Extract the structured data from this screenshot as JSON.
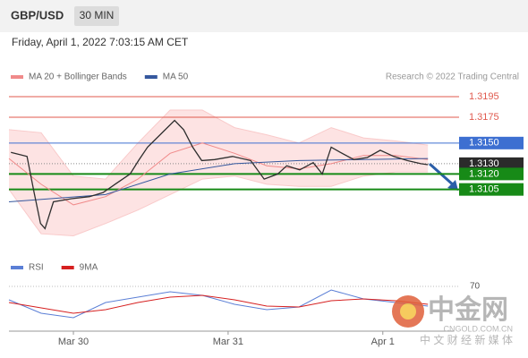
{
  "chart_data": {
    "type": "line",
    "title": "GBP/USD",
    "timeframe": "30 MIN",
    "subtitle": "Friday, April 1, 2022 7:03:15 AM CET",
    "source": "Research © 2022 Trading Central",
    "xlim": [
      -10,
      59
    ],
    "xticks": [
      {
        "value": 0,
        "label": "Mar 30"
      },
      {
        "value": 24,
        "label": "Mar 31"
      },
      {
        "value": 48,
        "label": "Apr 1"
      }
    ],
    "ylim": [
      1.305,
      1.3228
    ],
    "series": [
      {
        "name": "MA 20 + Bollinger Bands",
        "color": "#f08a8a",
        "x": [
          -10,
          -5,
          0,
          5,
          10,
          15,
          20,
          25,
          30,
          35,
          40,
          45,
          50,
          55
        ],
        "values": [
          1.3135,
          1.311,
          1.309,
          1.3098,
          1.3115,
          1.314,
          1.315,
          1.314,
          1.3128,
          1.3125,
          1.313,
          1.3138,
          1.3138,
          1.3134
        ],
        "upper": [
          1.3163,
          1.316,
          1.3118,
          1.3115,
          1.315,
          1.3182,
          1.3182,
          1.3165,
          1.3158,
          1.315,
          1.3165,
          1.3155,
          1.3152,
          1.3148
        ],
        "lower": [
          1.3105,
          1.3062,
          1.306,
          1.3072,
          1.3085,
          1.31,
          1.3115,
          1.3118,
          1.311,
          1.3108,
          1.3108,
          1.3118,
          1.3122,
          1.3122
        ]
      },
      {
        "name": "MA 50",
        "color": "#35589e",
        "x": [
          -10,
          5,
          15,
          25,
          35,
          45,
          55
        ],
        "values": [
          1.3093,
          1.31,
          1.312,
          1.313,
          1.3133,
          1.3134,
          1.3135
        ]
      },
      {
        "color": "#2e2e2e",
        "x": [
          -9.7,
          -7.2,
          -6.1,
          -5.1,
          -4.4,
          -3.1,
          -0.3,
          2.5,
          4.6,
          6.7,
          8.8,
          10.1,
          11.5,
          13.6,
          15.7,
          17.1,
          18.5,
          19.9,
          21.9,
          24.7,
          27.5,
          29.6,
          31.7,
          33.1,
          35.1,
          37.2,
          38.6,
          40.0,
          41.4,
          43.5,
          45.6,
          47.6,
          49.7,
          51.8,
          53.9,
          55.0
        ],
        "values": [
          1.3141,
          1.3137,
          1.3102,
          1.3072,
          1.3067,
          1.3093,
          1.3096,
          1.3098,
          1.3102,
          1.3111,
          1.312,
          1.3133,
          1.3146,
          1.3159,
          1.3172,
          1.3163,
          1.3146,
          1.3133,
          1.3134,
          1.3137,
          1.3133,
          1.3115,
          1.312,
          1.3128,
          1.3124,
          1.3131,
          1.312,
          1.3146,
          1.3141,
          1.3134,
          1.3136,
          1.3143,
          1.3137,
          1.3133,
          1.313,
          1.3129
        ]
      }
    ],
    "levels": [
      {
        "value": 1.3195,
        "label": "1.3195",
        "color": "#e05a4e",
        "boxed": false,
        "line": "thin"
      },
      {
        "value": 1.3175,
        "label": "1.3175",
        "color": "#e05a4e",
        "boxed": false,
        "line": "thin"
      },
      {
        "value": 1.315,
        "label": "1.3150",
        "color": "#3d6fd1",
        "boxed": true,
        "line": "thin"
      },
      {
        "value": 1.313,
        "label": "1.3130",
        "color": "#2b2b2b",
        "boxed": true,
        "line": "dotted"
      },
      {
        "value": 1.312,
        "label": "1.3120",
        "color": "#178a17",
        "boxed": true,
        "line": "thick"
      },
      {
        "value": 1.3105,
        "label": "1.3105",
        "color": "#178a17",
        "boxed": true,
        "line": "thick"
      }
    ],
    "rsi": {
      "ylim": [
        20,
        80
      ],
      "yticks": [
        70
      ],
      "series": [
        {
          "name": "RSI",
          "color": "#5b7fd6",
          "x": [
            -10,
            -5,
            0,
            5,
            10,
            15,
            20,
            25,
            30,
            35,
            40,
            45,
            50,
            55
          ],
          "values": [
            55,
            40,
            35,
            52,
            58,
            64,
            60,
            50,
            44,
            47,
            66,
            56,
            52,
            48
          ]
        },
        {
          "name": "9MA",
          "color": "#d62020",
          "x": [
            -10,
            -5,
            0,
            5,
            10,
            15,
            20,
            25,
            30,
            35,
            40,
            45,
            50,
            55
          ],
          "values": [
            52,
            46,
            40,
            44,
            52,
            58,
            60,
            55,
            48,
            47,
            54,
            56,
            54,
            50
          ]
        }
      ]
    }
  },
  "watermark": {
    "title": "中金网",
    "domain": "CNGOLD.COM.CN",
    "tagline": "中 文 财 经 新 媒 体"
  }
}
